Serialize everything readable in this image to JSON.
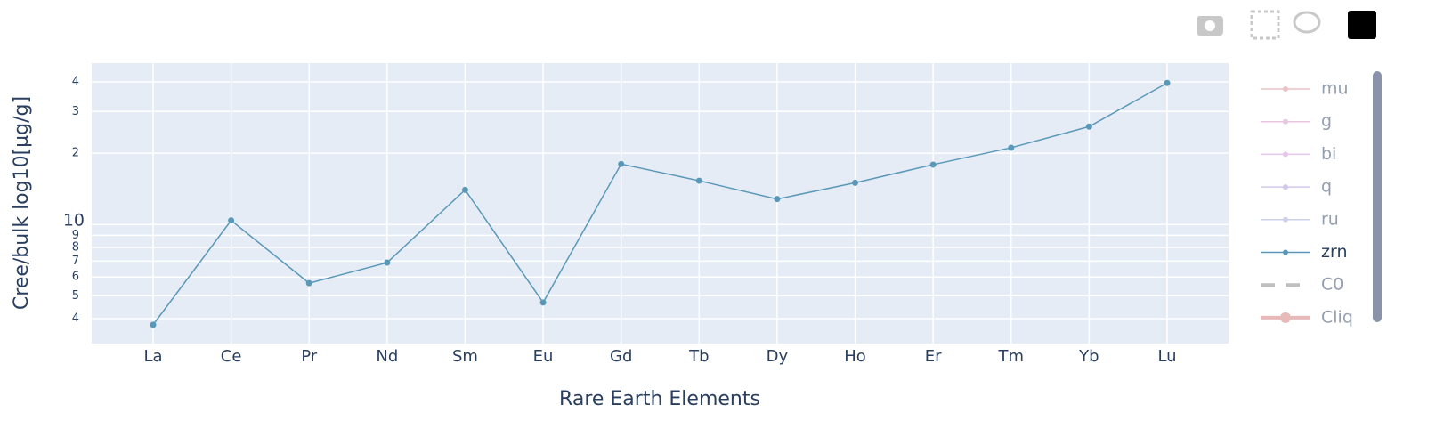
{
  "chart_data": {
    "type": "line",
    "x_label": "Rare Earth Elements",
    "y_label": "Cree/bulk log10[µg/g]",
    "log_y": true,
    "grid": true,
    "legend_position": "right",
    "categories": [
      "La",
      "Ce",
      "Pr",
      "Nd",
      "Sm",
      "Eu",
      "Gd",
      "Tb",
      "Dy",
      "Ho",
      "Er",
      "Tm",
      "Yb",
      "Lu"
    ],
    "ylim": [
      3.14,
      48
    ],
    "yticks": [
      4,
      5,
      6,
      7,
      8,
      9,
      10,
      {
        "value": 20,
        "label": "2"
      },
      {
        "value": 30,
        "label": "3"
      },
      {
        "value": 40,
        "label": "4"
      }
    ],
    "series": [
      {
        "name": "mu",
        "color": "#d4868f",
        "visible": false
      },
      {
        "name": "g",
        "color": "#d48fc0",
        "visible": false
      },
      {
        "name": "bi",
        "color": "#c890d4",
        "visible": false
      },
      {
        "name": "q",
        "color": "#a98fd8",
        "visible": false
      },
      {
        "name": "ru",
        "color": "#9fa6d4",
        "visible": false
      },
      {
        "name": "zrn",
        "color": "#5a98b8",
        "visible": true,
        "values": [
          3.77,
          10.4,
          5.65,
          6.9,
          14.0,
          4.68,
          18.0,
          15.3,
          12.8,
          15.0,
          17.9,
          21.1,
          25.9,
          39.6
        ]
      },
      {
        "name": "C0",
        "color": "#808080",
        "visible": false,
        "dash": true
      },
      {
        "name": "Cliq",
        "color": "#d27575",
        "visible": false,
        "thick": true
      }
    ]
  }
}
